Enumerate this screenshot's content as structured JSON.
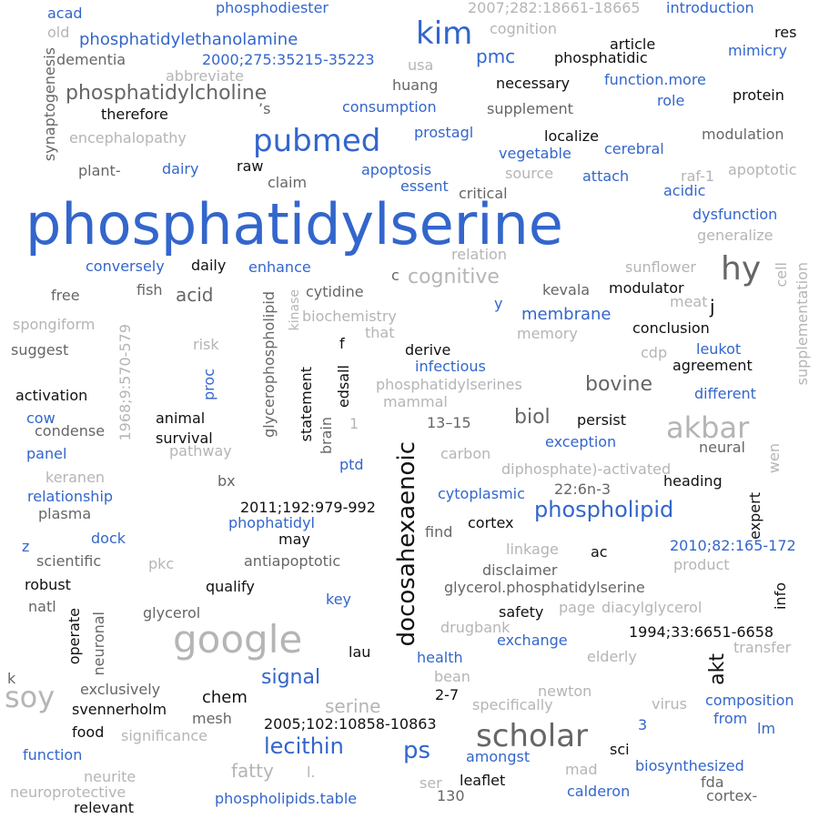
{
  "colors": {
    "blue": "#3366cc",
    "black": "#111111",
    "dark_gray": "#666666",
    "light_gray": "#b5b5b5",
    "background": "#ffffff"
  },
  "words": [
    "phosphatidylserine",
    "pubmed",
    "kim",
    "google",
    "scholar",
    "akbar",
    "hy",
    "soy",
    "docosahexaenoic",
    "phospholipid",
    "phosphatidylcholine",
    "lecithin",
    "ps",
    "cognitive",
    "bovine",
    "signal",
    "akt",
    "biol",
    "membrane",
    "acid",
    "phosphatidylethanolamine",
    "pmc",
    "chem",
    "serine",
    "fatty",
    "phosphodiester",
    "acad",
    "2007;282:18661-18665",
    "introduction",
    "cognition",
    "old",
    "2000;275:35215-35223",
    "article",
    "res",
    "dementia",
    "phosphatidic",
    "mimicry",
    "abbreviate",
    "usa",
    "huang",
    "necessary",
    "function.more",
    "protein",
    "synaptogenesis",
    "’s",
    "therefore",
    "consumption",
    "supplement",
    "role",
    "encephalopathy",
    "prostagl",
    "localize",
    "modulation",
    "cerebral",
    "vegetable",
    "plant-",
    "dairy",
    "raw",
    "apoptosis",
    "source",
    "attach",
    "raf-1",
    "apoptotic",
    "claim",
    "essent",
    "critical",
    "acidic",
    "dysfunction",
    "relation",
    "generalize",
    "conversely",
    "daily",
    "enhance",
    "sunflower",
    "c",
    "free",
    "fish",
    "kinase",
    "cytidine",
    "glycerophospholipid",
    "kevala",
    "modulator",
    "cell",
    "meat",
    "j",
    "spongiform",
    "biochemistry",
    "y",
    "supplementation",
    "conclusion",
    "suggest",
    "that",
    "memory",
    "f",
    "1968;9:570-579",
    "risk",
    "proc",
    "derive",
    "cdp",
    "leukot",
    "agreement",
    "infectious",
    "phosphatidylserines",
    "statement",
    "edsall",
    "activation",
    "different",
    "mammal",
    "cow",
    "animal",
    "1",
    "13–15",
    "condense",
    "survival",
    "persist",
    "pathway",
    "brain",
    "carbon",
    "exception",
    "neural",
    "panel",
    "keranen",
    "ptd",
    "diphosphate)-activated",
    "wen",
    "bx",
    "heading",
    "relationship",
    "cytoplasmic",
    "22:6n-3",
    "plasma",
    "2011;192:979-992",
    "phophatidyl",
    "cortex",
    "find",
    "expert",
    "dock",
    "may",
    "z",
    "linkage",
    "2010;82:165-172",
    "scientific",
    "pkc",
    "antiapoptotic",
    "ac",
    "disclaimer",
    "product",
    "robust",
    "qualify",
    "glycerol.phosphatidylserine",
    "key",
    "natl",
    "info",
    "page",
    "diacylglycerol",
    "glycerol",
    "neuronal",
    "safety",
    "drugbank",
    "operate",
    "1994;33:6651-6658",
    "exchange",
    "lau",
    "elderly",
    "transfer",
    "health",
    "k",
    "exclusively",
    "bean",
    "newton",
    "2-7",
    "specifically",
    "virus",
    "composition",
    "svennerholm",
    "mesh",
    "2005;102:10858-10863",
    "3",
    "from",
    "lm",
    "food",
    "significance",
    "function",
    "amongst",
    "sci",
    "biosynthesized",
    "neurite",
    "l.",
    "mad",
    "fda",
    "neuroprotective",
    "ser",
    "leaflet",
    "calderon",
    "relevant",
    "phospholipids.table",
    "130",
    "cortex-"
  ]
}
